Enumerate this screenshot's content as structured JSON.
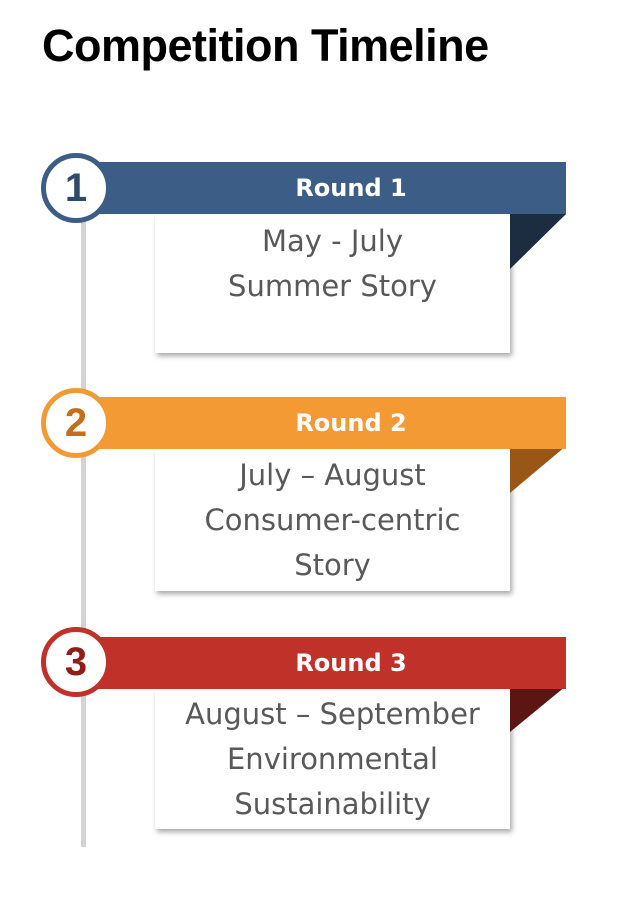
{
  "title": "Competition Timeline",
  "rounds": [
    {
      "number": "1",
      "label": "Round 1",
      "lines": [
        "May - July",
        "Summer Story"
      ],
      "colors": {
        "banner": "#3c5e86",
        "circle_border": "#3c5e86",
        "number": "#2f4a6b",
        "fold": "#1c2c41"
      }
    },
    {
      "number": "2",
      "label": "Round 2",
      "lines": [
        "July – August",
        "Consumer-centric",
        "Story"
      ],
      "colors": {
        "banner": "#f39a35",
        "circle_border": "#f39a35",
        "number": "#c46d1b",
        "fold": "#9a5614"
      }
    },
    {
      "number": "3",
      "label": "Round 3",
      "lines": [
        "August – September",
        "Environmental",
        "Sustainability"
      ],
      "colors": {
        "banner": "#c0312a",
        "circle_border": "#c0312a",
        "number": "#8f1d18",
        "fold": "#5c1512"
      }
    }
  ]
}
